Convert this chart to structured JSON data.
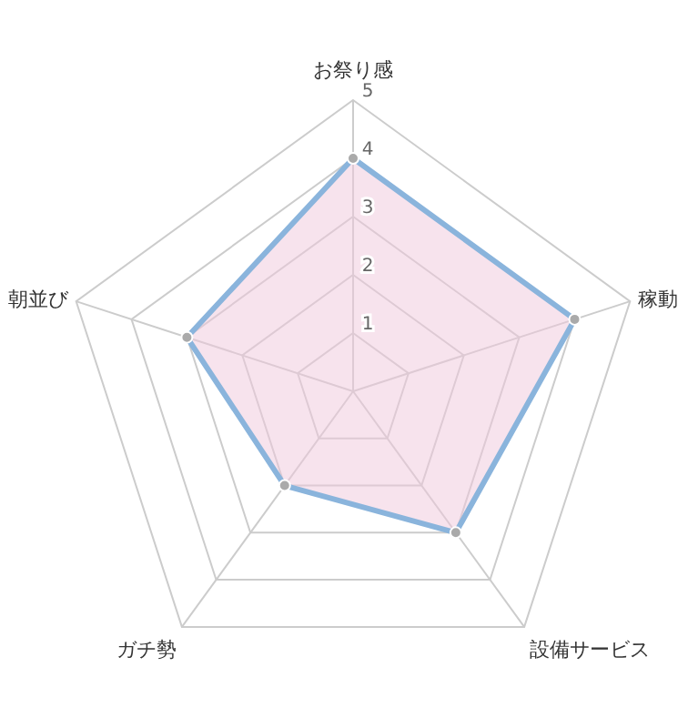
{
  "chart_data": {
    "type": "radar",
    "categories": [
      "お祭り感",
      "稼動",
      "設備サービス",
      "ガチ勢",
      "朝並び"
    ],
    "ylim": [
      0,
      5
    ],
    "yticks": [
      1,
      2,
      3,
      4,
      5
    ],
    "marker": "circle",
    "line_style": "solid",
    "series": [
      {
        "color": "#8ab4dc",
        "values": [
          4,
          4,
          3,
          2,
          3
        ]
      }
    ]
  }
}
